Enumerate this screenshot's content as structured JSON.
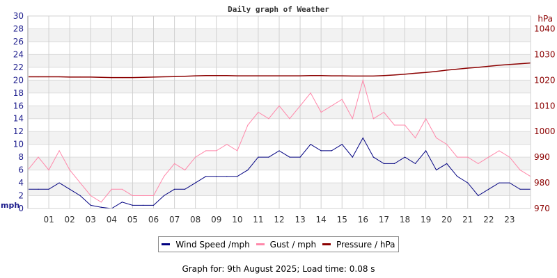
{
  "chart_data": {
    "type": "line",
    "title": "Daily graph of Weather",
    "x_tick_labels": [
      "01",
      "02",
      "03",
      "04",
      "05",
      "06",
      "07",
      "08",
      "09",
      "10",
      "11",
      "12",
      "13",
      "14",
      "15",
      "16",
      "17",
      "18",
      "19",
      "20",
      "21",
      "22",
      "23"
    ],
    "xlim": [
      0,
      24
    ],
    "left_axis": {
      "label": "mph",
      "ylim": [
        0,
        30
      ],
      "ticks": [
        0,
        2,
        4,
        6,
        8,
        10,
        12,
        14,
        16,
        18,
        20,
        22,
        24,
        26,
        28,
        30
      ],
      "color": "#1c1c8c"
    },
    "right_axis": {
      "label": "hPa",
      "ylim": [
        970,
        1045
      ],
      "ticks": [
        970,
        980,
        990,
        1000,
        1010,
        1020,
        1030,
        1040
      ],
      "color": "#8b0000"
    },
    "grid": true,
    "x": [
      0,
      0.5,
      1,
      1.5,
      2,
      2.5,
      3,
      3.5,
      4,
      4.5,
      5,
      5.5,
      6,
      6.5,
      7,
      7.5,
      8,
      8.5,
      9,
      9.5,
      10,
      10.5,
      11,
      11.5,
      12,
      12.5,
      13,
      13.5,
      14,
      14.5,
      15,
      15.5,
      16,
      16.5,
      17,
      17.5,
      18,
      18.5,
      19,
      19.5,
      20,
      20.5,
      21,
      21.5,
      22,
      22.5,
      23,
      23.5,
      24
    ],
    "series": [
      {
        "name": "Wind Speed /mph",
        "axis": "left",
        "color": "#000080",
        "values": [
          3,
          3,
          3,
          4,
          3,
          2,
          0.5,
          0.2,
          0,
          1,
          0.5,
          0.5,
          0.5,
          2,
          3,
          3,
          4,
          5,
          5,
          5,
          5,
          6,
          8,
          8,
          9,
          8,
          8,
          10,
          9,
          9,
          10,
          8,
          11,
          8,
          7,
          7,
          8,
          7,
          9,
          6,
          7,
          5,
          4,
          2,
          3,
          4,
          4,
          3,
          3
        ]
      },
      {
        "name": "Gust / mph",
        "axis": "left",
        "color": "#ff88aa",
        "values": [
          6,
          8,
          6,
          9,
          6,
          4,
          2,
          1,
          3,
          3,
          2,
          2,
          2,
          5,
          7,
          6,
          8,
          9,
          9,
          10,
          9,
          13,
          15,
          14,
          16,
          14,
          16,
          18,
          15,
          16,
          17,
          14,
          20,
          14,
          15,
          13,
          13,
          11,
          14,
          11,
          10,
          8,
          8,
          7,
          8,
          9,
          8,
          6,
          5
        ]
      },
      {
        "name": "Pressure / hPa",
        "axis": "right",
        "color": "#8b0000",
        "values": [
          1021.3,
          1021.3,
          1021.3,
          1021.3,
          1021.2,
          1021.2,
          1021.2,
          1021.1,
          1021,
          1021,
          1021,
          1021.1,
          1021.2,
          1021.3,
          1021.4,
          1021.5,
          1021.7,
          1021.8,
          1021.8,
          1021.8,
          1021.7,
          1021.7,
          1021.7,
          1021.7,
          1021.7,
          1021.7,
          1021.7,
          1021.8,
          1021.8,
          1021.7,
          1021.7,
          1021.6,
          1021.6,
          1021.6,
          1021.8,
          1022,
          1022.3,
          1022.7,
          1023,
          1023.4,
          1023.9,
          1024.3,
          1024.7,
          1025,
          1025.4,
          1025.8,
          1026.1,
          1026.4,
          1026.7
        ]
      }
    ],
    "legend_position": "bottom"
  },
  "footer": "Graph for: 9th August 2025; Load time: 0.08 s"
}
